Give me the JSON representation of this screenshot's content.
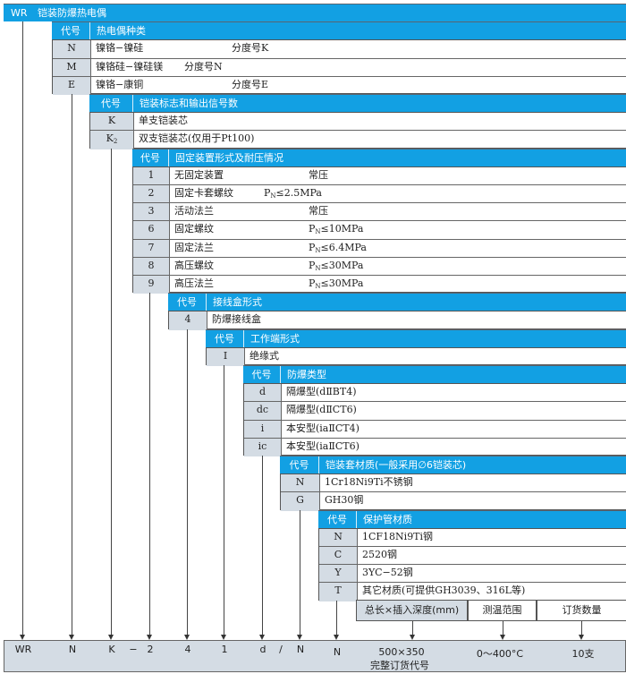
{
  "header": {
    "code": "WR",
    "title": "铠装防爆热电偶"
  },
  "sections": [
    {
      "code_label": "代号",
      "title": "热电偶种类",
      "items": [
        {
          "code": "N",
          "desc": "镍铬−镍硅",
          "extra": "分度号K"
        },
        {
          "code": "M",
          "desc": "镍铬硅−镍硅镁",
          "extra": "分度号N"
        },
        {
          "code": "E",
          "desc": "镍铬−康铜",
          "extra": "分度号E"
        }
      ]
    },
    {
      "code_label": "代号",
      "title": "铠装标志和输出信号数",
      "items": [
        {
          "code": "K",
          "desc": "单支铠装芯"
        },
        {
          "code": "K",
          "code_sub": "2",
          "desc": "双支铠装芯(仅用于Pt100)"
        }
      ]
    },
    {
      "code_label": "代号",
      "title": "固定装置形式及耐压情况",
      "items": [
        {
          "code": "1",
          "desc": "无固定装置",
          "extra": "常压"
        },
        {
          "code": "2",
          "desc": "固定卡套螺纹",
          "p": "P",
          "p_sub": "N",
          "extra": "≤2.5MPa"
        },
        {
          "code": "3",
          "desc": "活动法兰",
          "extra": "常压"
        },
        {
          "code": "6",
          "desc": "固定螺纹",
          "p": "P",
          "p_sub": "N",
          "extra": "≤10MPa"
        },
        {
          "code": "7",
          "desc": "固定法兰",
          "p": "P",
          "p_sub": "N",
          "extra": "≤6.4MPa"
        },
        {
          "code": "8",
          "desc": "高压螺纹",
          "p": "P",
          "p_sub": "N",
          "extra": "≤30MPa"
        },
        {
          "code": "9",
          "desc": "高压法兰",
          "p": "P",
          "p_sub": "N",
          "extra": "≤30MPa"
        }
      ]
    },
    {
      "code_label": "代号",
      "title": "接线盒形式",
      "items": [
        {
          "code": "4",
          "desc": "防爆接线盒"
        }
      ]
    },
    {
      "code_label": "代号",
      "title": "工作端形式",
      "items": [
        {
          "code": "I",
          "desc": "绝缘式"
        }
      ]
    },
    {
      "code_label": "代号",
      "title": "防爆类型",
      "items": [
        {
          "code": "d",
          "desc": "隔爆型(dⅡBT4)"
        },
        {
          "code": "dc",
          "desc": "隔爆型(dⅡCT6)"
        },
        {
          "code": "i",
          "desc": "本安型(iaⅡCT4)"
        },
        {
          "code": "ic",
          "desc": "本安型(iaⅡCT6)"
        }
      ]
    },
    {
      "code_label": "代号",
      "title": "铠装套材质(一般采用∅6铠装芯)",
      "items": [
        {
          "code": "N",
          "desc": "1Cr18Ni9Ti不锈钢"
        },
        {
          "code": "G",
          "desc": " GH30钢"
        }
      ]
    },
    {
      "code_label": "代号",
      "title": "保护管材质",
      "items": [
        {
          "code": "N",
          "desc": "1CF18Ni9Ti钢"
        },
        {
          "code": "C",
          "desc": "2520钢"
        },
        {
          "code": "Y",
          "desc": "3YC−52钢"
        },
        {
          "code": "T",
          "desc": "其它材质(可提供GH3039、316L等)"
        }
      ]
    }
  ],
  "extra_fields": [
    {
      "label": "总长×插入深度(mm)"
    },
    {
      "label": "测温范围"
    },
    {
      "label": "订货数量"
    }
  ],
  "order_code": {
    "parts": [
      "WR",
      "N",
      "K",
      "−",
      "2",
      "4",
      "1",
      "d",
      "/",
      "N",
      "N",
      "500×350",
      "0～400°C",
      "10支"
    ],
    "caption": "完整订货代号"
  },
  "colors": {
    "header_blue": "#12a0e3",
    "code_gray": "#d4dce4"
  }
}
